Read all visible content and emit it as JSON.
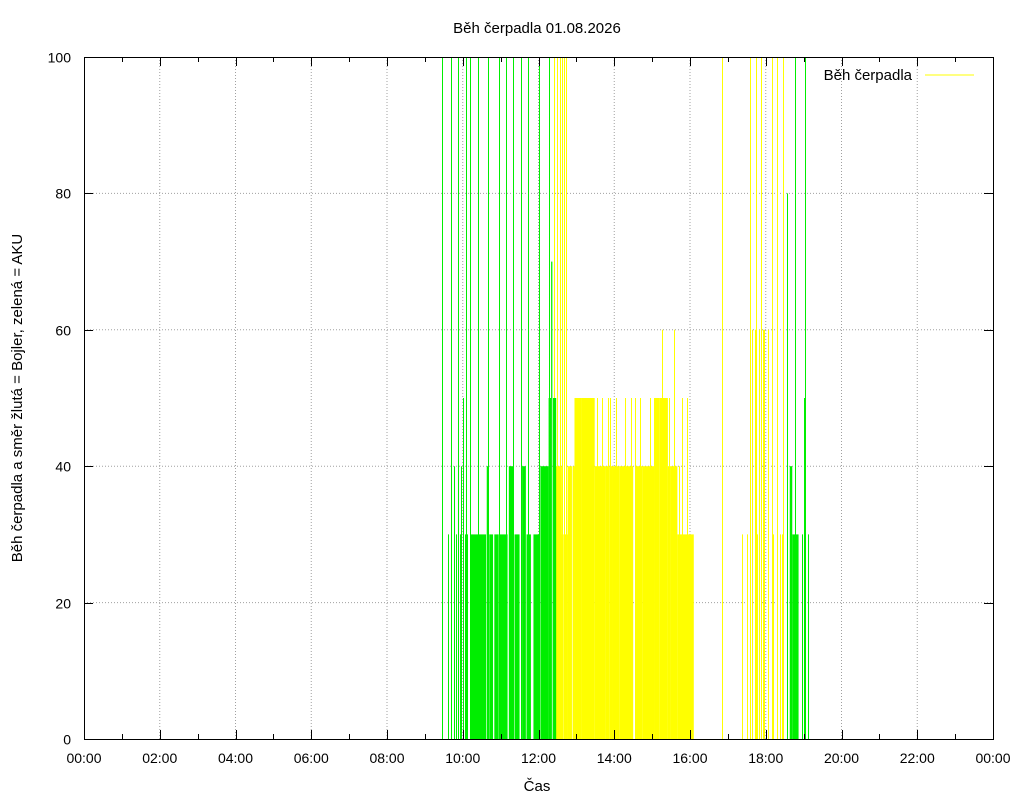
{
  "chart_data": {
    "type": "bar",
    "title": "Běh čerpadla 01.08.2026",
    "xlabel": "Čas",
    "ylabel": "Běh čerpadla a směr žlutá = Bojler, zelená = AKU",
    "xlim": [
      0,
      1440
    ],
    "ylim": [
      0,
      100
    ],
    "x_unit": "minutes from 00:00",
    "x_tick_labels": [
      "00:00",
      "02:00",
      "04:00",
      "06:00",
      "08:00",
      "10:00",
      "12:00",
      "14:00",
      "16:00",
      "18:00",
      "20:00",
      "22:00",
      "00:00"
    ],
    "y_tick_labels": [
      "0",
      "20",
      "40",
      "60",
      "80",
      "100"
    ],
    "grid": true,
    "legend": {
      "position": "top-right",
      "entries": [
        {
          "name": "Běh čerpadla",
          "color": "#ffff00"
        }
      ]
    },
    "colors": {
      "aku": "#00ee00",
      "bojler": "#ffff00"
    },
    "series": [
      {
        "name": "AKU",
        "color": "#00ee00",
        "spikes": [
          [
            567,
            100
          ],
          [
            576,
            30
          ],
          [
            582,
            100
          ],
          [
            586,
            40
          ],
          [
            589,
            30
          ],
          [
            592,
            100
          ],
          [
            595,
            30
          ],
          [
            598,
            40
          ],
          [
            601,
            50
          ],
          [
            604,
            30
          ],
          [
            605,
            100
          ],
          [
            607,
            30
          ]
        ],
        "blocks": [
          [
            613,
            637,
            30
          ],
          [
            638,
            641,
            40
          ],
          [
            642,
            648,
            30
          ],
          [
            650,
            657,
            30
          ],
          [
            659,
            671,
            30
          ],
          [
            673,
            680,
            40
          ],
          [
            682,
            690,
            30
          ],
          [
            694,
            700,
            40
          ],
          [
            701,
            708,
            30
          ],
          [
            712,
            721,
            30
          ],
          [
            723,
            736,
            40
          ],
          [
            736,
            740,
            50
          ],
          [
            740,
            742,
            70
          ],
          [
            743,
            748,
            50
          ]
        ],
        "blocks2": [
          [
            1118,
            1122,
            40
          ],
          [
            1122,
            1132,
            30
          ]
        ],
        "spikes2": [
          [
            1114,
            80
          ],
          [
            1127,
            100
          ],
          [
            1137,
            30
          ],
          [
            1140,
            50
          ],
          [
            1142,
            100
          ],
          [
            1147,
            30
          ]
        ],
        "extra_spikes": [
          [
            611,
            100
          ],
          [
            624,
            100
          ],
          [
            640,
            100
          ],
          [
            657,
            100
          ],
          [
            668,
            100
          ],
          [
            679,
            100
          ],
          [
            692,
            100
          ],
          [
            703,
            100
          ],
          [
            721,
            100
          ],
          [
            737,
            100
          ]
        ]
      },
      {
        "name": "Bojler",
        "color": "#ffff00",
        "spikes": [
          [
            745,
            100
          ],
          [
            749,
            100
          ],
          [
            754,
            100
          ],
          [
            758,
            100
          ],
          [
            760,
            30
          ],
          [
            1010,
            100
          ],
          [
            1055,
            100
          ],
          [
            1065,
            100
          ],
          [
            1072,
            100
          ],
          [
            1090,
            100
          ],
          [
            1098,
            100
          ],
          [
            1108,
            100
          ],
          [
            830,
            50
          ],
          [
            842,
            50
          ],
          [
            866,
            50
          ],
          [
            873,
            50
          ],
          [
            915,
            60
          ],
          [
            942,
            40
          ],
          [
            948,
            50
          ],
          [
            955,
            50
          ],
          [
            1042,
            30
          ],
          [
            1050,
            30
          ],
          [
            1059,
            60
          ],
          [
            1063,
            60
          ],
          [
            1066,
            30
          ],
          [
            1069,
            60
          ],
          [
            1075,
            60
          ],
          [
            1078,
            60
          ],
          [
            1083,
            60
          ],
          [
            1092,
            30
          ],
          [
            1102,
            30
          ],
          [
            1106,
            30
          ]
        ],
        "blocks": [
          [
            747,
            756,
            40
          ],
          [
            753,
            760,
            30
          ],
          [
            756,
            758,
            40
          ],
          [
            761,
            766,
            30
          ],
          [
            766,
            773,
            40
          ],
          [
            774,
            777,
            40
          ],
          [
            777,
            788,
            50
          ],
          [
            788,
            809,
            50
          ],
          [
            809,
            826,
            40
          ],
          [
            826,
            832,
            40
          ],
          [
            832,
            838,
            40
          ],
          [
            838,
            848,
            40
          ],
          [
            848,
            858,
            40
          ],
          [
            858,
            870,
            40
          ],
          [
            873,
            885,
            40
          ],
          [
            885,
            903,
            40
          ],
          [
            903,
            912,
            50
          ],
          [
            912,
            917,
            50
          ],
          [
            917,
            925,
            50
          ],
          [
            925,
            929,
            40
          ],
          [
            929,
            940,
            40
          ],
          [
            940,
            956,
            30
          ],
          [
            956,
            966,
            30
          ]
        ],
        "spikes_mid": [
          [
            760,
            100
          ],
          [
            764,
            100
          ],
          [
            798,
            50
          ],
          [
            812,
            50
          ],
          [
            820,
            50
          ],
          [
            834,
            50
          ],
          [
            857,
            50
          ],
          [
            880,
            50
          ],
          [
            896,
            50
          ],
          [
            920,
            50
          ],
          [
            927,
            50
          ],
          [
            934,
            60
          ]
        ]
      }
    ]
  }
}
